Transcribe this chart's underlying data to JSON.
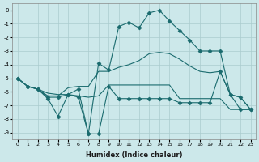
{
  "xlabel": "Humidex (Indice chaleur)",
  "background_color": "#cce8ea",
  "grid_color": "#aaccce",
  "line_color": "#1a6b6e",
  "xlim": [
    -0.5,
    23.5
  ],
  "ylim": [
    -9.5,
    0.5
  ],
  "yticks": [
    0,
    -1,
    -2,
    -3,
    -4,
    -5,
    -6,
    -7,
    -8,
    -9
  ],
  "xticks": [
    0,
    1,
    2,
    3,
    4,
    5,
    6,
    7,
    8,
    9,
    10,
    11,
    12,
    13,
    14,
    15,
    16,
    17,
    18,
    19,
    20,
    21,
    22,
    23
  ],
  "lines": [
    {
      "x": [
        0,
        1,
        2,
        3,
        4,
        5,
        6,
        7,
        8,
        9,
        10,
        11,
        12,
        13,
        14,
        15,
        16,
        17,
        18,
        19,
        20,
        21,
        22,
        23
      ],
      "y": [
        -5.0,
        -5.6,
        -5.8,
        -6.4,
        -6.4,
        -6.2,
        -5.8,
        -9.1,
        -3.9,
        -4.4,
        -1.2,
        -0.9,
        -1.3,
        -0.2,
        0.0,
        -0.8,
        -1.5,
        -2.2,
        -3.0,
        -3.0,
        -3.0,
        -6.2,
        -6.4,
        -7.3
      ],
      "marker": "D",
      "markersize": 2.5
    },
    {
      "x": [
        0,
        1,
        2,
        3,
        4,
        5,
        6,
        7,
        8,
        9,
        10,
        11,
        12,
        13,
        14,
        15,
        16,
        17,
        18,
        19,
        20,
        21,
        22,
        23
      ],
      "y": [
        -5.0,
        -5.6,
        -5.8,
        -6.3,
        -6.3,
        -5.7,
        -5.6,
        -5.6,
        -4.5,
        -4.5,
        -4.2,
        -4.0,
        -3.7,
        -3.2,
        -3.1,
        -3.2,
        -3.6,
        -4.1,
        -4.5,
        -4.6,
        -4.5,
        -6.2,
        -6.4,
        -7.3
      ],
      "marker": null
    },
    {
      "x": [
        0,
        1,
        2,
        3,
        4,
        5,
        6,
        7,
        8,
        9,
        10,
        11,
        12,
        13,
        14,
        15,
        16,
        17,
        18,
        19,
        20,
        21,
        22,
        23
      ],
      "y": [
        -5.0,
        -5.6,
        -5.8,
        -6.1,
        -6.2,
        -6.2,
        -6.3,
        -6.4,
        -6.3,
        -5.5,
        -5.5,
        -5.5,
        -5.5,
        -5.5,
        -5.5,
        -5.5,
        -6.5,
        -6.5,
        -6.5,
        -6.5,
        -6.5,
        -7.3,
        -7.3,
        -7.3
      ],
      "marker": null
    },
    {
      "x": [
        0,
        1,
        2,
        3,
        4,
        5,
        6,
        7,
        8,
        9,
        10,
        11,
        12,
        13,
        14,
        15,
        16,
        17,
        18,
        19,
        20,
        21,
        22,
        23
      ],
      "y": [
        -5.0,
        -5.6,
        -5.8,
        -6.5,
        -7.8,
        -6.2,
        -6.4,
        -9.1,
        -9.1,
        -5.6,
        -6.5,
        -6.5,
        -6.5,
        -6.5,
        -6.5,
        -6.5,
        -6.8,
        -6.8,
        -6.8,
        -6.8,
        -4.5,
        -6.2,
        -7.3,
        -7.3
      ],
      "marker": "D",
      "markersize": 2.5
    }
  ]
}
